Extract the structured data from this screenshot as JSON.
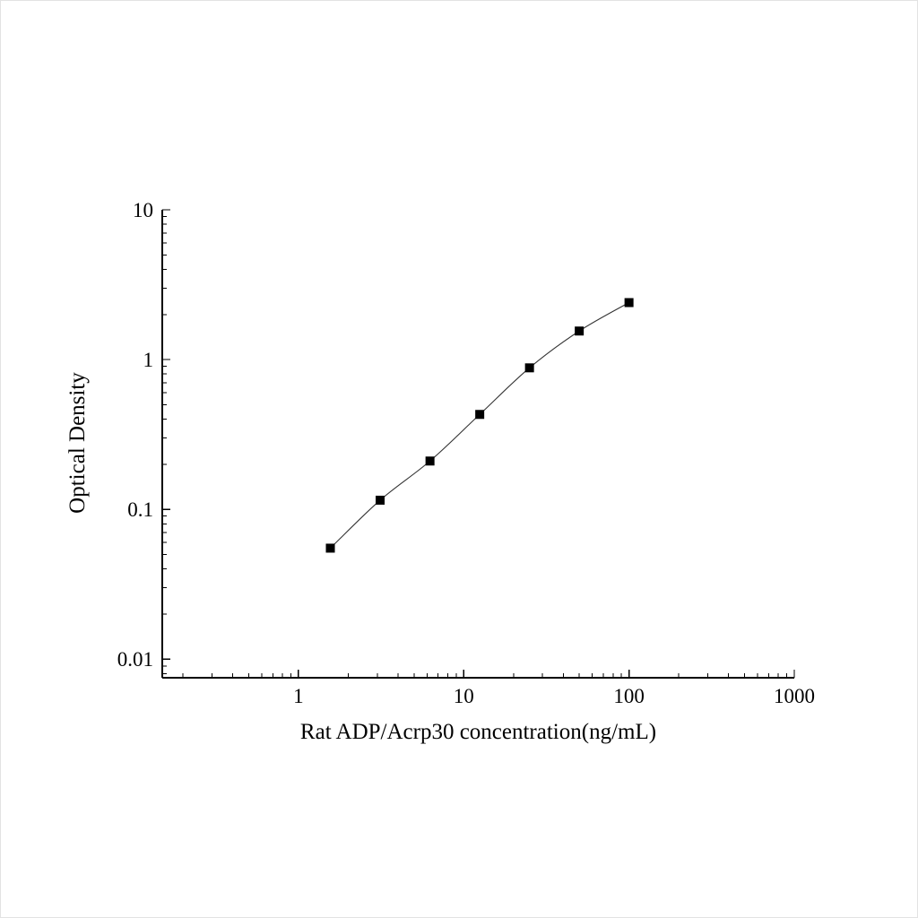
{
  "page": {
    "background": "#ffffff",
    "foreground": "#000000"
  },
  "chart_data": {
    "type": "scatter",
    "subtype": "standard-curve",
    "title": "",
    "xlabel": "Rat ADP/Acrp30 concentration(ng/mL)",
    "ylabel": "Optical Density",
    "xscale": "log",
    "yscale": "log",
    "x": [
      1.56,
      3.12,
      6.25,
      12.5,
      25,
      50,
      100
    ],
    "y": [
      0.055,
      0.115,
      0.21,
      0.43,
      0.88,
      1.55,
      2.4
    ],
    "x_tick_labels": [
      "1",
      "10",
      "100",
      "1000"
    ],
    "x_ticks": [
      1,
      10,
      100,
      1000
    ],
    "y_tick_labels": [
      "0.01",
      "0.1",
      "1",
      "10"
    ],
    "y_ticks": [
      0.01,
      0.1,
      1,
      10
    ],
    "xlim": [
      0.15,
      1000
    ],
    "ylim": [
      0.0075,
      10
    ],
    "grid": false,
    "legend": null,
    "marker": "filled-square",
    "marker_color": "#000000",
    "line": "smooth",
    "line_color": "#333333",
    "axis_color": "#000000"
  }
}
